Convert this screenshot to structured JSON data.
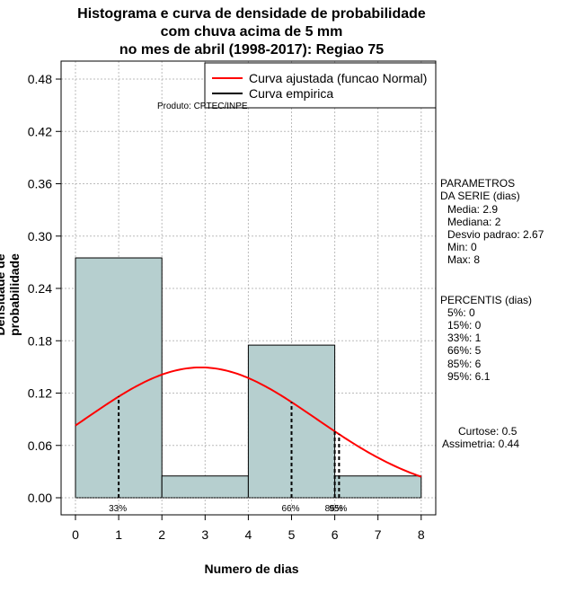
{
  "chart_data": {
    "type": "bar",
    "title_lines": [
      "Histograma e curva de densidade de probabilidade",
      "com chuva acima de 5 mm",
      "no mes de abril (1998-2017): Regiao 75"
    ],
    "xlabel": "Numero de dias",
    "ylabel": "Densidade de probabilidade",
    "xlim": [
      0,
      8
    ],
    "ylim": [
      0,
      0.48
    ],
    "x_ticks": [
      "0",
      "1",
      "2",
      "3",
      "4",
      "5",
      "6",
      "7",
      "8"
    ],
    "y_ticks": [
      "0.00",
      "0.06",
      "0.12",
      "0.18",
      "0.24",
      "0.30",
      "0.36",
      "0.42",
      "0.48"
    ],
    "bins": [
      {
        "from": 0,
        "to": 2,
        "density": 0.275
      },
      {
        "from": 2,
        "to": 4,
        "density": 0.025
      },
      {
        "from": 4,
        "to": 6,
        "density": 0.175
      },
      {
        "from": 6,
        "to": 8,
        "density": 0.025
      }
    ],
    "normal_curve": {
      "mean": 2.9,
      "sd": 2.67,
      "color": "#ff0000"
    },
    "percentile_lines": [
      {
        "x": 1,
        "label": "33%"
      },
      {
        "x": 5,
        "label": "66%"
      },
      {
        "x": 6,
        "label": "85%"
      },
      {
        "x": 6.1,
        "label": "95%"
      }
    ],
    "legend": [
      "Curva ajustada (funcao Normal)",
      "Curva empirica"
    ],
    "credit": "Produto: CPTEC/INPE",
    "bar_color": "#b6cfcf"
  },
  "side_params": {
    "heading1": "PARAMETROS",
    "heading2": "DA SERIE (dias)",
    "media": "Media: 2.9",
    "mediana": "Mediana: 2",
    "desvio": "Desvio padrao: 2.67",
    "min": "Min: 0",
    "max": "Max: 8"
  },
  "side_percentis": {
    "heading": "PERCENTIS (dias)",
    "p5": "5%: 0",
    "p15": "15%: 0",
    "p33": "33%: 1",
    "p66": "66%: 5",
    "p85": "85%: 6",
    "p95": "95%: 6.1"
  },
  "side_shape": {
    "curtose": "Curtose: 0.5",
    "assimetria": "Assimetria: 0.44"
  }
}
